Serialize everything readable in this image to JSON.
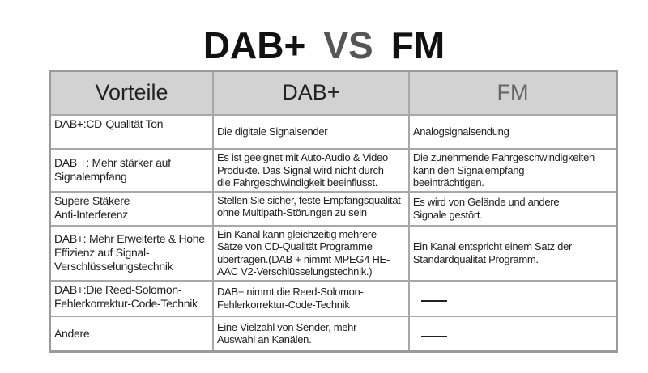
{
  "title": {
    "left": "DAB+",
    "middle": "VS",
    "right": "FM"
  },
  "table": {
    "headers": [
      "Vorteile",
      "DAB+",
      "FM"
    ],
    "rows": [
      {
        "feature": "DAB+:CD-Qualität Ton",
        "dab": "Die digitale Signalsender",
        "fm": "Analogsignalsendung"
      },
      {
        "feature": "DAB +: Mehr stärker auf\nSignalempfang",
        "dab": "Es ist geeignet mit Auto-Audio & Video\nProdukte. Das Signal wird nicht durch\ndie Fahrgeschwindigkeit beeinflusst.",
        "fm": "Die zunehmende Fahrgeschwindigkeiten\nkann den Signalempfang\nbeeinträchtigen."
      },
      {
        "feature": "Supere Stäkere\nAnti-Interferenz",
        "dab": "Stellen Sie sicher, feste Empfangsqualität\nohne Multipath-Störungen zu sein",
        "fm": "Es wird von Gelände und andere\nSignale gestört."
      },
      {
        "feature": "DAB+: Mehr Erweiterte & Hohe\nEffizienz auf Signal-\nVerschlüsselungstechnik",
        "dab": "Ein Kanal kann gleichzeitig mehrere\nSätze von CD-Qualität Programme\nübertragen.(DAB + nimmt MPEG4 HE-\nAAC V2-Verschlüsselungstechnik.)",
        "fm": "Ein Kanal entspricht einem Satz der\nStandardqualität Programm."
      },
      {
        "feature": "DAB+:Die Reed-Solomon-\nFehlerkorrektur-Code-Technik",
        "dab": "DAB+ nimmt die Reed-Solomon-\nFehlerkorrektur-Code-Technik",
        "fm": null
      },
      {
        "feature": "Andere",
        "dab": "Eine Vielzahl von Sender, mehr\nAuswahl an Kanälen.",
        "fm": null
      }
    ]
  }
}
